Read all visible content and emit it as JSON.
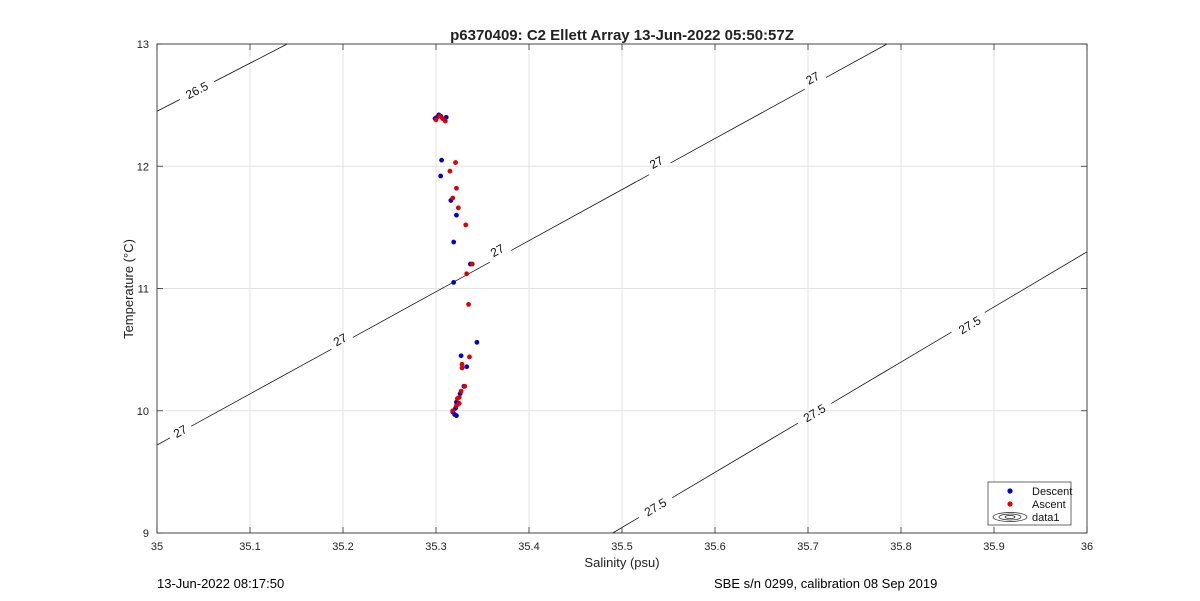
{
  "chart_data": {
    "type": "scatter",
    "title": "p6370409: C2 Ellett Array 13-Jun-2022 05:50:57Z",
    "xlabel": "Salinity (psu)",
    "ylabel": "Temperature (°C)",
    "xlim": [
      35,
      36
    ],
    "ylim": [
      9,
      13
    ],
    "xticks": [
      "35",
      "35.1",
      "35.2",
      "35.3",
      "35.4",
      "35.5",
      "35.6",
      "35.7",
      "35.8",
      "35.9",
      "36"
    ],
    "yticks": [
      "9",
      "10",
      "11",
      "12",
      "13"
    ],
    "grid": true,
    "legend_position": "bottom-right",
    "series": [
      {
        "name": "Descent",
        "color": "#0000cc",
        "points": [
          [
            35.299,
            12.39
          ],
          [
            35.301,
            12.4
          ],
          [
            35.303,
            12.42
          ],
          [
            35.305,
            12.41
          ],
          [
            35.311,
            12.4
          ],
          [
            35.306,
            12.05
          ],
          [
            35.305,
            11.92
          ],
          [
            35.316,
            11.72
          ],
          [
            35.322,
            11.6
          ],
          [
            35.319,
            11.38
          ],
          [
            35.337,
            11.2
          ],
          [
            35.319,
            11.05
          ],
          [
            35.344,
            10.56
          ],
          [
            35.327,
            10.45
          ],
          [
            35.333,
            10.36
          ],
          [
            35.33,
            10.2
          ],
          [
            35.326,
            10.14
          ],
          [
            35.322,
            10.07
          ],
          [
            35.321,
            10.02
          ],
          [
            35.318,
            9.99
          ],
          [
            35.32,
            9.97
          ],
          [
            35.322,
            9.96
          ]
        ]
      },
      {
        "name": "Ascent",
        "color": "#dd0000",
        "points": [
          [
            35.3,
            12.38
          ],
          [
            35.304,
            12.41
          ],
          [
            35.307,
            12.39
          ],
          [
            35.31,
            12.37
          ],
          [
            35.321,
            12.03
          ],
          [
            35.315,
            11.96
          ],
          [
            35.322,
            11.82
          ],
          [
            35.318,
            11.74
          ],
          [
            35.324,
            11.66
          ],
          [
            35.332,
            11.52
          ],
          [
            35.339,
            11.2
          ],
          [
            35.333,
            11.12
          ],
          [
            35.335,
            10.87
          ],
          [
            35.336,
            10.44
          ],
          [
            35.328,
            10.38
          ],
          [
            35.328,
            10.35
          ],
          [
            35.331,
            10.2
          ],
          [
            35.327,
            10.16
          ],
          [
            35.325,
            10.11
          ],
          [
            35.323,
            10.1
          ],
          [
            35.325,
            10.06
          ],
          [
            35.322,
            10.04
          ],
          [
            35.318,
            10.0
          ]
        ]
      }
    ],
    "contour_series_name": "data1",
    "contours": [
      {
        "level": "26.5",
        "line": [
          [
            35.0,
            12.45
          ],
          [
            35.14,
            13.0
          ]
        ],
        "labels": [
          {
            "text": "26.5",
            "at": [
              35.043,
              12.62
            ]
          }
        ]
      },
      {
        "level": "27",
        "line": [
          [
            35.0,
            9.72
          ],
          [
            35.785,
            13.0
          ]
        ],
        "labels": [
          {
            "text": "27",
            "at": [
              35.025,
              9.83
            ]
          },
          {
            "text": "27",
            "at": [
              35.197,
              10.58
            ]
          },
          {
            "text": "27",
            "at": [
              35.366,
              11.31
            ]
          },
          {
            "text": "27",
            "at": [
              35.537,
              12.03
            ]
          },
          {
            "text": "27",
            "at": [
              35.705,
              12.72
            ]
          }
        ]
      },
      {
        "level": "27.5",
        "line": [
          [
            35.49,
            9.0
          ],
          [
            36.0,
            11.3
          ]
        ],
        "labels": [
          {
            "text": "27.5",
            "at": [
              35.536,
              9.21
            ]
          },
          {
            "text": "27.5",
            "at": [
              35.707,
              9.98
            ]
          },
          {
            "text": "27.5",
            "at": [
              35.874,
              10.7
            ]
          }
        ]
      }
    ]
  },
  "footer": {
    "left": "13-Jun-2022 08:17:50",
    "right": "SBE s/n 0299, calibration 08 Sep 2019"
  }
}
